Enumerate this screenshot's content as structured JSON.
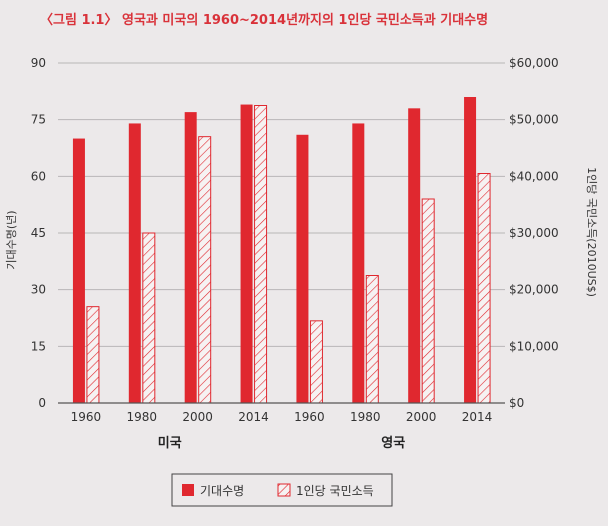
{
  "chart_data": {
    "type": "bar",
    "title": "〈그림 1.1〉 영국과 미국의 1960~2014년까지의 1인당 국민소득과 기대수명",
    "categories": [
      "1960",
      "1980",
      "2000",
      "2014",
      "1960",
      "1980",
      "2000",
      "2014"
    ],
    "groups": [
      {
        "label": "미국",
        "categories": [
          "1960",
          "1980",
          "2000",
          "2014"
        ]
      },
      {
        "label": "영국",
        "categories": [
          "1960",
          "1980",
          "2000",
          "2014"
        ]
      }
    ],
    "series": [
      {
        "name": "기대수명",
        "axis": "left",
        "color": "#e0282f",
        "fill": "solid",
        "values": [
          70,
          74,
          77,
          79,
          71,
          74,
          78,
          81
        ]
      },
      {
        "name": "1인당 국민소득",
        "axis": "right",
        "color": "#e0282f",
        "fill": "hatched",
        "values": [
          17000,
          30000,
          47000,
          52500,
          14500,
          22500,
          36000,
          40500
        ]
      }
    ],
    "ylabel_left": "기대수명(년)",
    "ylabel_right": "1인당 국민소득(2010US$)",
    "ylim_left": [
      0,
      90
    ],
    "ylim_right": [
      0,
      60000
    ],
    "yticks_left": [
      "0",
      "15",
      "30",
      "45",
      "60",
      "75",
      "90"
    ],
    "yticks_right": [
      "$0",
      "$10,000",
      "$20,000",
      "$30,000",
      "$40,000",
      "$50,000",
      "$60,000"
    ],
    "grid": true,
    "legend_position": "bottom"
  }
}
